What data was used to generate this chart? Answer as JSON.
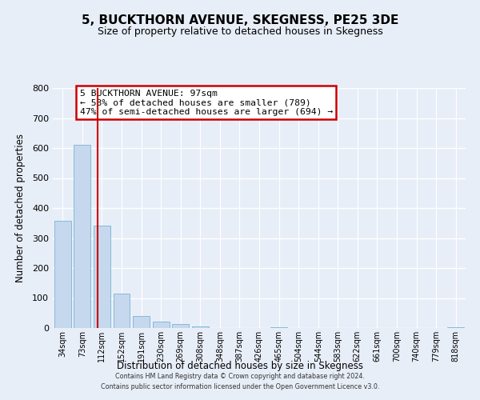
{
  "title": "5, BUCKTHORN AVENUE, SKEGNESS, PE25 3DE",
  "subtitle": "Size of property relative to detached houses in Skegness",
  "xlabel": "Distribution of detached houses by size in Skegness",
  "ylabel": "Number of detached properties",
  "bar_labels": [
    "34sqm",
    "73sqm",
    "112sqm",
    "152sqm",
    "191sqm",
    "230sqm",
    "269sqm",
    "308sqm",
    "348sqm",
    "387sqm",
    "426sqm",
    "465sqm",
    "504sqm",
    "544sqm",
    "583sqm",
    "622sqm",
    "661sqm",
    "700sqm",
    "740sqm",
    "779sqm",
    "818sqm"
  ],
  "bar_values": [
    358,
    611,
    341,
    114,
    40,
    22,
    13,
    5,
    0,
    0,
    0,
    3,
    0,
    0,
    0,
    0,
    0,
    0,
    0,
    0,
    4
  ],
  "bar_color": "#c5d8ed",
  "bar_edge_color": "#7ab3d4",
  "property_line_x": 1.77,
  "property_line_color": "#cc0000",
  "annotation_title": "5 BUCKTHORN AVENUE: 97sqm",
  "annotation_line1": "← 53% of detached houses are smaller (789)",
  "annotation_line2": "47% of semi-detached houses are larger (694) →",
  "annotation_box_color": "#cc0000",
  "ylim": [
    0,
    800
  ],
  "yticks": [
    0,
    100,
    200,
    300,
    400,
    500,
    600,
    700,
    800
  ],
  "footer_line1": "Contains HM Land Registry data © Crown copyright and database right 2024.",
  "footer_line2": "Contains public sector information licensed under the Open Government Licence v3.0.",
  "background_color": "#e8eef8",
  "plot_background": "#e8eef8"
}
